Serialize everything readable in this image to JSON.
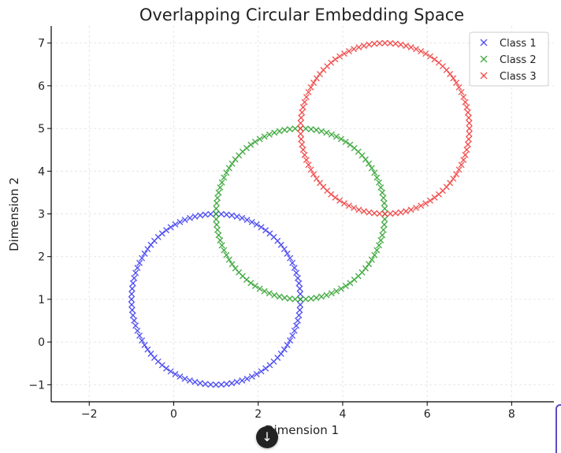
{
  "chart_data": {
    "type": "scatter",
    "title": "Overlapping Circular Embedding Space",
    "xlabel": "Dimension 1",
    "ylabel": "Dimension 2",
    "xlim": [
      -2.9,
      9.0
    ],
    "ylim": [
      -1.4,
      7.4
    ],
    "xticks": [
      -2,
      0,
      2,
      4,
      6,
      8
    ],
    "yticks": [
      -1,
      0,
      1,
      2,
      3,
      4,
      5,
      6,
      7
    ],
    "xtick_labels": [
      "−2",
      "0",
      "2",
      "4",
      "6",
      "8"
    ],
    "ytick_labels": [
      "−1",
      "0",
      "1",
      "2",
      "3",
      "4",
      "5",
      "6",
      "7"
    ],
    "grid": true,
    "legend_position": "top-right",
    "marker": "x",
    "series": [
      {
        "name": "Class 1",
        "color": "#3a3af0",
        "center": [
          1,
          1
        ],
        "radius": 2,
        "points": 100
      },
      {
        "name": "Class 2",
        "color": "#2ca02c",
        "center": [
          3,
          3
        ],
        "radius": 2,
        "points": 100
      },
      {
        "name": "Class 3",
        "color": "#f03a3a",
        "center": [
          5,
          5
        ],
        "radius": 2,
        "points": 100
      }
    ]
  },
  "ui": {
    "scroll_button_icon": "arrow-down-icon",
    "scroll_button_glyph": "↓"
  }
}
